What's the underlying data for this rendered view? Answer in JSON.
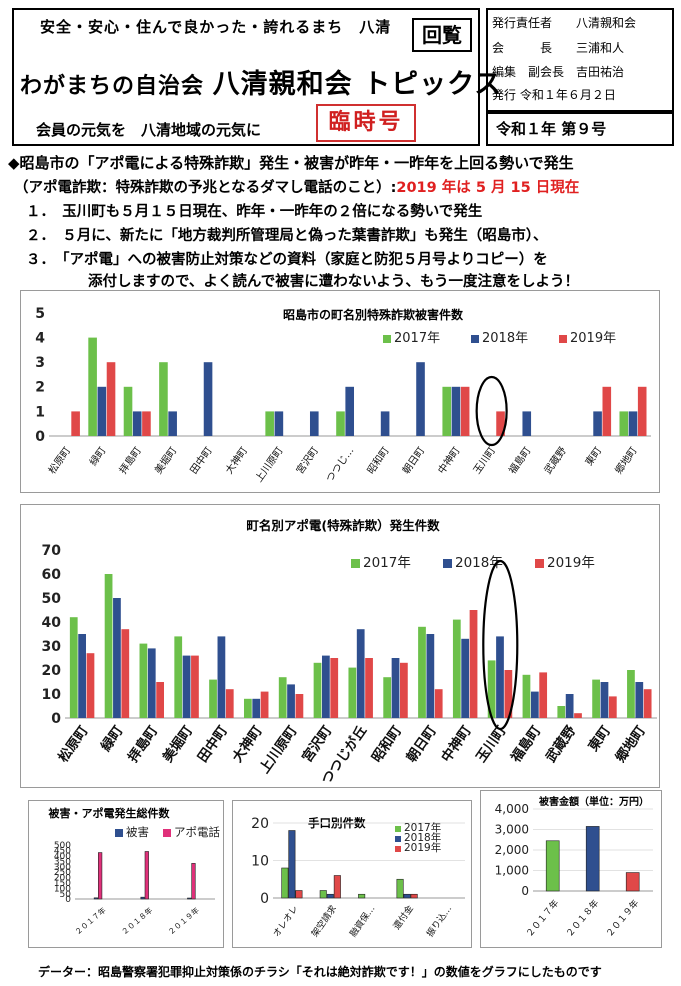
{
  "header": {
    "slogan": "安全・安心・住んで良かった・誇れるまち　八清",
    "circulation": "回覧",
    "title_prefix": "わがまちの自治会 ",
    "title_main": "八清親和会 トピックス",
    "motto": "会員の元気を　八清地域の元気に",
    "special_issue": "臨時号",
    "publisher": [
      "発行責任者　　八清親和会",
      "会　　　長　　三浦和人",
      "編集　副会長　吉田祐治",
      "発行 令和１年６月２日"
    ],
    "issue_no": "令和１年 第９号"
  },
  "lead": {
    "headline": "◆昭島市の「アポ電による特殊詐欺」発生・被害が昨年・一昨年を上回る勢いで発生",
    "note_black": "（アポ電詐欺：特殊詐欺の予兆となるダマし電話のこと）:",
    "note_red": "2019 年は 5 月 15 日現在",
    "items": [
      "１．　玉川町も５月１５日現在、昨年・一昨年の２倍になる勢いで発生",
      "２．　５月に、新たに「地方裁判所管理局と偽った葉書詐欺」も発生（昭島市）、",
      "３．　「アポ電」への被害防止対策などの資料（家庭と防犯５月号よりコピー）を",
      "添付しますので、よく読んで被害に遭わないよう、もう一度注意をしよう！"
    ]
  },
  "colors": {
    "y2017": "#6cc04a",
    "y2018": "#2f4f8f",
    "y2019": "#e04848",
    "circle": "#000000"
  },
  "chart_data": [
    {
      "type": "bar",
      "title": "昭島市の町名別特殊詐欺被害件数",
      "categories": [
        "松原町",
        "緑町",
        "拝島町",
        "美堀町",
        "田中町",
        "大神町",
        "上川原町",
        "宮沢町",
        "つつじ…",
        "昭和町",
        "朝日町",
        "中神町",
        "玉川町",
        "福島町",
        "武蔵野",
        "東町",
        "郷地町"
      ],
      "series": [
        {
          "name": "2017年",
          "values": [
            0,
            4,
            2,
            3,
            0,
            0,
            1,
            0,
            1,
            0,
            0,
            2,
            0,
            0,
            0,
            0,
            1
          ]
        },
        {
          "name": "2018年",
          "values": [
            0,
            2,
            1,
            1,
            3,
            0,
            1,
            1,
            2,
            1,
            3,
            2,
            0,
            1,
            0,
            1,
            1
          ]
        },
        {
          "name": "2019年",
          "values": [
            1,
            3,
            1,
            0,
            0,
            0,
            0,
            0,
            0,
            0,
            0,
            2,
            1,
            0,
            0,
            2,
            2
          ]
        }
      ],
      "yticks": [
        "0",
        "1",
        "2",
        "3",
        "4",
        "5"
      ],
      "ylim": [
        0,
        5
      ],
      "highlight": "玉川町",
      "legend_position": "top-right"
    },
    {
      "type": "bar",
      "title": "町名別アポ電(特殊詐欺）発生件数",
      "categories": [
        "松原町",
        "緑町",
        "拝島町",
        "美堀町",
        "田中町",
        "大神町",
        "上川原町",
        "宮沢町",
        "つつじが丘",
        "昭和町",
        "朝日町",
        "中神町",
        "玉川町",
        "福島町",
        "武蔵野",
        "東町",
        "郷地町"
      ],
      "series": [
        {
          "name": "2017年",
          "values": [
            42,
            60,
            31,
            34,
            16,
            8,
            17,
            23,
            21,
            17,
            38,
            41,
            24,
            18,
            5,
            16,
            20
          ]
        },
        {
          "name": "2018年",
          "values": [
            35,
            50,
            29,
            26,
            34,
            8,
            14,
            26,
            37,
            25,
            35,
            33,
            34,
            11,
            10,
            15,
            15
          ]
        },
        {
          "name": "2019年",
          "values": [
            27,
            37,
            15,
            26,
            12,
            11,
            10,
            25,
            25,
            23,
            12,
            45,
            20,
            19,
            2,
            9,
            12
          ]
        }
      ],
      "yticks": [
        "0",
        "10",
        "20",
        "30",
        "40",
        "50",
        "60",
        "70"
      ],
      "ylim": [
        0,
        70
      ],
      "highlight": "玉川町",
      "legend_position": "top-right"
    },
    {
      "type": "bar",
      "title": "被害・アポ電発生総件数",
      "categories": [
        "２０１７年",
        "２０１８年",
        "２０１９年"
      ],
      "series": [
        {
          "name": "被害",
          "values": [
            11,
            17,
            9
          ]
        },
        {
          "name": "アポ電話",
          "values": [
            430,
            440,
            330
          ]
        }
      ],
      "yticks": [
        "0",
        "50",
        "100",
        "150",
        "200",
        "250",
        "300",
        "350",
        "400",
        "450",
        "500"
      ],
      "ylim": [
        0,
        500
      ],
      "legend_position": "top-right"
    },
    {
      "type": "bar",
      "title": "手口別件数",
      "categories": [
        "オレオレ",
        "架空請求",
        "融資保…",
        "還付金",
        "振り込…"
      ],
      "series": [
        {
          "name": "2017年",
          "values": [
            8,
            2,
            1,
            5,
            0
          ]
        },
        {
          "name": "2018年",
          "values": [
            18,
            1,
            0,
            1,
            0
          ]
        },
        {
          "name": "2019年",
          "values": [
            2,
            6,
            0,
            1,
            0
          ]
        }
      ],
      "yticks": [
        "0",
        "10",
        "20"
      ],
      "ylim": [
        0,
        20
      ],
      "legend_position": "top-right"
    },
    {
      "type": "bar",
      "title": "被害金額（単位：万円）",
      "categories": [
        "２０１７年",
        "２０１８年",
        "２０１９年"
      ],
      "series": [
        {
          "name": "",
          "values": [
            2450,
            3150,
            900
          ]
        }
      ],
      "yticks": [
        "0",
        "1,000",
        "2,000",
        "3,000",
        "4,000"
      ],
      "ylim": [
        0,
        4000
      ]
    }
  ],
  "footer": "データー：昭島警察署犯罪抑止対策係のチラシ「それは絶対詐欺です！」の数値をグラフにしたものです"
}
